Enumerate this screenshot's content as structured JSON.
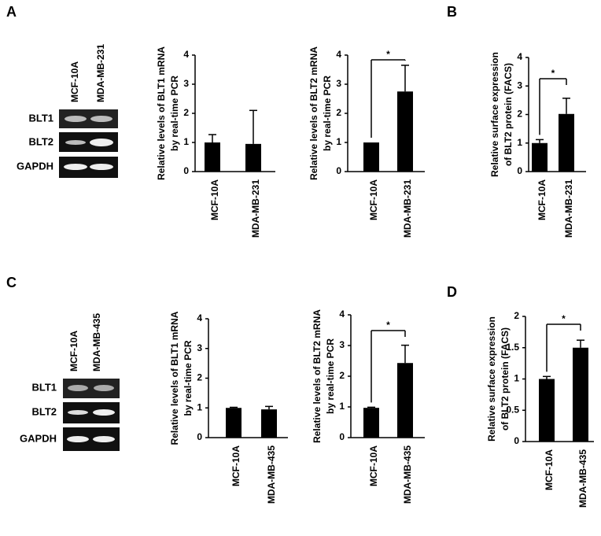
{
  "panels": [
    "A",
    "B",
    "C",
    "D"
  ],
  "gels": [
    {
      "lanes": [
        "MCF-10A",
        "MDA-MB-231"
      ],
      "rows": [
        "BLT1",
        "BLT2",
        "GAPDH"
      ]
    },
    {
      "lanes": [
        "MCF-10A",
        "MDA-MB-435"
      ],
      "rows": [
        "BLT1",
        "BLT2",
        "GAPDH"
      ]
    }
  ],
  "chart_data": [
    {
      "type": "bar",
      "ylabel": [
        "Relative levels of BLT1 mRNA",
        "by  real-time PCR"
      ],
      "categories": [
        "MCF-10A",
        "MDA-MB-231"
      ],
      "values": [
        1,
        0.95
      ],
      "errors": [
        0.27,
        1.15
      ],
      "color": "#000000",
      "ylim": [
        0,
        4
      ],
      "yticks": [
        0,
        1,
        2,
        3,
        4
      ]
    },
    {
      "type": "bar",
      "ylabel": [
        "Relative levels of BLT2 mRNA",
        "by  real-time PCR"
      ],
      "categories": [
        "MCF-10A",
        "MDA-MB-231"
      ],
      "values": [
        1,
        2.75
      ],
      "errors": [
        null,
        0.9
      ],
      "color": "#000000",
      "ylim": [
        0,
        4
      ],
      "yticks": [
        0,
        1,
        2,
        3,
        4
      ],
      "annotation": "*"
    },
    {
      "type": "bar",
      "ylabel": [
        "Relative surface expression",
        "of BLT2 protein (FACS)"
      ],
      "categories": [
        "MCF-10A",
        "MDA-MB-231"
      ],
      "values": [
        1,
        2.02
      ],
      "errors": [
        0.12,
        0.55
      ],
      "color": "#000000",
      "ylim": [
        0,
        4
      ],
      "yticks": [
        0,
        1,
        2,
        3,
        4
      ],
      "annotation": "*"
    },
    {
      "type": "bar",
      "ylabel": [
        "Relative levels of BLT1 mRNA",
        "by real-time PCR"
      ],
      "categories": [
        "MCF-10A",
        "MDA-MB-435"
      ],
      "values": [
        1,
        0.95
      ],
      "errors": [
        0.02,
        0.1
      ],
      "color": "#000000",
      "ylim": [
        0,
        4
      ],
      "yticks": [
        0,
        1,
        2,
        3,
        4
      ]
    },
    {
      "type": "bar",
      "ylabel": [
        "Relative levels of BLT2 mRNA",
        "by real-time PCR"
      ],
      "categories": [
        "MCF-10A",
        "MDA-MB-435"
      ],
      "values": [
        0.97,
        2.43
      ],
      "errors": [
        0.02,
        0.58
      ],
      "color": "#000000",
      "ylim": [
        0,
        4
      ],
      "yticks": [
        0,
        1,
        2,
        3,
        4
      ],
      "annotation": "*"
    },
    {
      "type": "bar",
      "ylabel": [
        "Relative surface expression",
        "of BLT2 protein (FACS)"
      ],
      "categories": [
        "MCF-10A",
        "MDA-MB-435"
      ],
      "values": [
        1,
        1.5
      ],
      "errors": [
        0.04,
        0.12
      ],
      "color": "#000000",
      "ylim": [
        0,
        2
      ],
      "yticks": [
        0,
        0.5,
        1,
        1.5,
        2
      ],
      "annotation": "*"
    }
  ]
}
